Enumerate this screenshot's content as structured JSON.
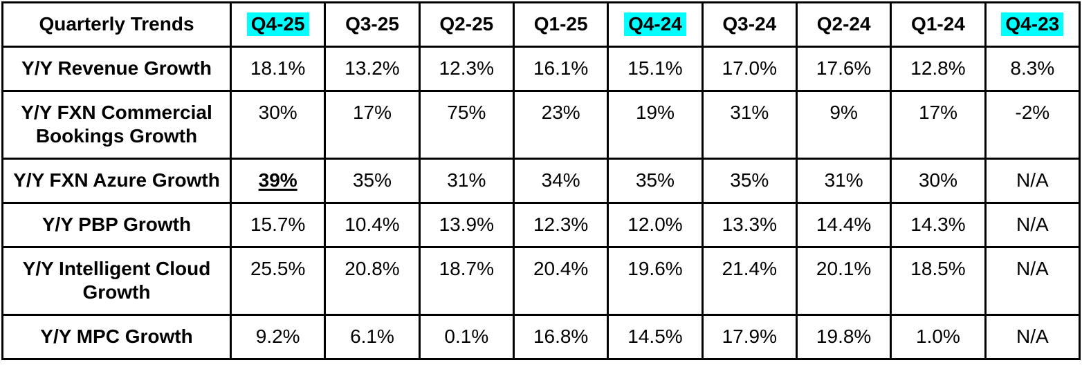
{
  "colors": {
    "background": "#ffffff",
    "border": "#000000",
    "text": "#000000",
    "quarter_highlight": "#00ffff"
  },
  "table": {
    "corner_label": "Quarterly Trends",
    "columns": [
      {
        "label": "Q4-25",
        "highlighted": true
      },
      {
        "label": "Q3-25",
        "highlighted": false
      },
      {
        "label": "Q2-25",
        "highlighted": false
      },
      {
        "label": "Q1-25",
        "highlighted": false
      },
      {
        "label": "Q4-24",
        "highlighted": true
      },
      {
        "label": "Q3-24",
        "highlighted": false
      },
      {
        "label": "Q2-24",
        "highlighted": false
      },
      {
        "label": "Q1-24",
        "highlighted": false
      },
      {
        "label": "Q4-23",
        "highlighted": true
      }
    ],
    "rows": [
      {
        "label": "Y/Y Revenue Growth",
        "values": [
          "18.1%",
          "13.2%",
          "12.3%",
          "16.1%",
          "15.1%",
          "17.0%",
          "17.6%",
          "12.8%",
          "8.3%"
        ]
      },
      {
        "label": "Y/Y FXN Commercial Bookings Growth",
        "values": [
          "30%",
          "17%",
          "75%",
          "23%",
          "19%",
          "31%",
          "9%",
          "17%",
          "-2%"
        ]
      },
      {
        "label": "Y/Y FXN Azure Growth",
        "values": [
          "39%",
          "35%",
          "31%",
          "34%",
          "35%",
          "35%",
          "31%",
          "30%",
          "N/A"
        ],
        "emphasized_value": "39%",
        "emphasized_column": "Q4-25",
        "emphasis_style": "bold-underline"
      },
      {
        "label": "Y/Y PBP Growth",
        "values": [
          "15.7%",
          "10.4%",
          "13.9%",
          "12.3%",
          "12.0%",
          "13.3%",
          "14.4%",
          "14.3%",
          "N/A"
        ]
      },
      {
        "label": "Y/Y Intelligent Cloud Growth",
        "values": [
          "25.5%",
          "20.8%",
          "18.7%",
          "20.4%",
          "19.6%",
          "21.4%",
          "20.1%",
          "18.5%",
          "N/A"
        ]
      },
      {
        "label": "Y/Y MPC Growth",
        "values": [
          "9.2%",
          "6.1%",
          "0.1%",
          "16.8%",
          "14.5%",
          "17.9%",
          "19.8%",
          "1.0%",
          "N/A"
        ]
      }
    ]
  },
  "chart_data": {
    "type": "table",
    "title": "Quarterly Trends",
    "categories": [
      "Q4-25",
      "Q3-25",
      "Q2-25",
      "Q1-25",
      "Q4-24",
      "Q3-24",
      "Q2-24",
      "Q1-24",
      "Q4-23"
    ],
    "highlighted_categories": [
      "Q4-25",
      "Q4-24",
      "Q4-23"
    ],
    "unit": "percent",
    "series": [
      {
        "name": "Y/Y Revenue Growth",
        "values": [
          18.1,
          13.2,
          12.3,
          16.1,
          15.1,
          17.0,
          17.6,
          12.8,
          8.3
        ]
      },
      {
        "name": "Y/Y FXN Commercial Bookings Growth",
        "values": [
          30,
          17,
          75,
          23,
          19,
          31,
          9,
          17,
          -2
        ]
      },
      {
        "name": "Y/Y FXN Azure Growth",
        "values": [
          39,
          35,
          31,
          34,
          35,
          35,
          31,
          30,
          null
        ]
      },
      {
        "name": "Y/Y PBP Growth",
        "values": [
          15.7,
          10.4,
          13.9,
          12.3,
          12.0,
          13.3,
          14.4,
          14.3,
          null
        ]
      },
      {
        "name": "Y/Y Intelligent Cloud Growth",
        "values": [
          25.5,
          20.8,
          18.7,
          20.4,
          19.6,
          21.4,
          20.1,
          18.5,
          null
        ]
      },
      {
        "name": "Y/Y MPC Growth",
        "values": [
          9.2,
          6.1,
          0.1,
          16.8,
          14.5,
          17.9,
          19.8,
          1.0,
          null
        ]
      }
    ],
    "notes": "N/A shown for Q4-23 in Azure, PBP, Intelligent Cloud and MPC rows; 39% (Azure, Q4-25) is bold and underlined"
  }
}
